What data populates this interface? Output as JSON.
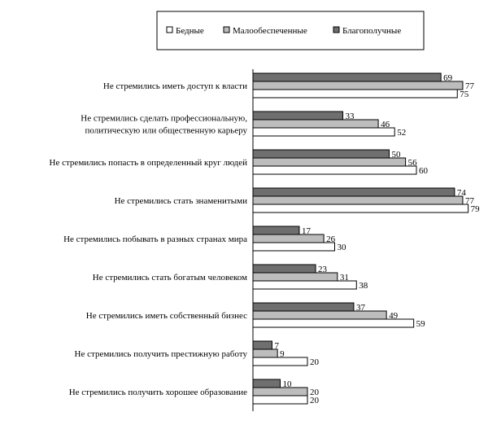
{
  "chart_data": {
    "type": "bar",
    "orientation": "horizontal",
    "categories": [
      [
        "Не стремились иметь доступ к власти"
      ],
      [
        "Не стремились сделать профессиональную,",
        "политическую или общественную карьеру"
      ],
      [
        "Не стремились попасть в определенный круг людей"
      ],
      [
        "Не стремились стать знаменитыми"
      ],
      [
        "Не стремились побывать в разных странах мира"
      ],
      [
        "Не стремились стать богатым человеком"
      ],
      [
        "Не стремились иметь собственный бизнес"
      ],
      [
        "Не стремились получить престижную работу"
      ],
      [
        "Не стремились получить хорошее образование"
      ]
    ],
    "series": [
      {
        "name": "Благополучные",
        "color": "#6f6f6f",
        "values": [
          69,
          33,
          50,
          74,
          17,
          23,
          37,
          7,
          10
        ]
      },
      {
        "name": "Малообеспеченные",
        "color": "#bdbdbd",
        "values": [
          77,
          46,
          56,
          77,
          26,
          31,
          49,
          9,
          20
        ]
      },
      {
        "name": "Бедные",
        "color": "#ffffff",
        "values": [
          75,
          52,
          60,
          79,
          30,
          38,
          59,
          20,
          20
        ]
      }
    ],
    "legend": {
      "placement": "top",
      "order": [
        "Бедные",
        "Малообеспеченные",
        "Благополучные"
      ]
    },
    "xlim": [
      0,
      100
    ],
    "grid": false
  }
}
